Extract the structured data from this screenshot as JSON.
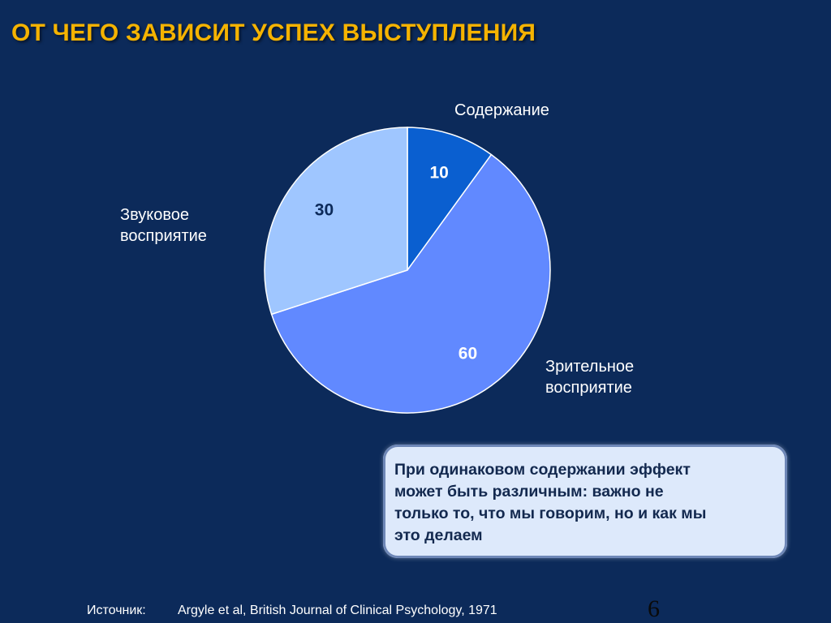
{
  "title": "ОТ ЧЕГО ЗАВИСИТ УСПЕХ ВЫСТУПЛЕНИЯ",
  "chart_data": {
    "type": "pie",
    "slices": [
      {
        "name": "Содержание",
        "value": 10,
        "color": "#0a5fd0",
        "label_color": "#ffffff"
      },
      {
        "name": "Зрительное восприятие",
        "value": 60,
        "color": "#6189ff",
        "label_color": "#ffffff"
      },
      {
        "name": "Звуковое восприятие",
        "value": 30,
        "color": "#9fc6ff",
        "label_color": "#0c2a5a"
      }
    ],
    "start_angle_deg": 0,
    "direction": "clockwise"
  },
  "labels": {
    "content": "Содержание",
    "audio_line1": "Звуковое",
    "audio_line2": "восприятие",
    "visual_line1": "Зрительное",
    "visual_line2": "восприятие"
  },
  "callout": {
    "line1": "При одинаковом содержании эффект",
    "line2": "может быть различным: важно не",
    "line3": "только то, что мы говорим, но и как мы",
    "line4": "это делаем"
  },
  "source": {
    "label": "Источник:",
    "text": "Argyle et al, British Journal of Clinical Psychology, 1971"
  },
  "page_number": "6"
}
